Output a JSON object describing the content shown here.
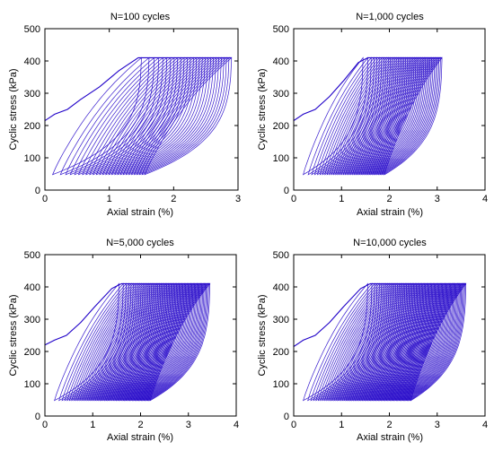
{
  "chart_data": [
    {
      "type": "line",
      "title": "N=100 cycles",
      "xlabel": "Axial strain (%)",
      "ylabel": "Cyclic stress (kPa)",
      "xlim": [
        0,
        3
      ],
      "ylim": [
        0,
        500
      ],
      "xticks": [
        0,
        1,
        2,
        3
      ],
      "yticks": [
        0,
        100,
        200,
        300,
        400,
        500
      ],
      "grid": false,
      "line_color": "#1f00c8",
      "series": [
        {
          "x": [
            0.0,
            0.15,
            0.35,
            0.55,
            0.85,
            1.15,
            1.45,
            1.7,
            1.85,
            2.05,
            2.3,
            2.55,
            2.75,
            2.85,
            2.9
          ],
          "y": [
            215,
            235,
            250,
            280,
            320,
            370,
            410,
            410,
            410,
            410,
            410,
            410,
            410,
            410,
            410
          ]
        }
      ],
      "loop_band": {
        "stress_min": 48,
        "stress_max": 410,
        "first_loop_x": [
          0.12,
          1.5
        ],
        "last_loop_x": [
          1.55,
          2.9
        ]
      }
    },
    {
      "type": "line",
      "title": "N=1,000 cycles",
      "xlabel": "Axial strain (%)",
      "ylabel": "Cyclic stress (kPa)",
      "xlim": [
        0,
        4
      ],
      "ylim": [
        0,
        500
      ],
      "xticks": [
        0,
        1,
        2,
        3,
        4
      ],
      "yticks": [
        0,
        100,
        200,
        300,
        400,
        500
      ],
      "grid": false,
      "line_color": "#1f00c8",
      "series": [
        {
          "x": [
            0.0,
            0.2,
            0.45,
            0.75,
            1.05,
            1.35,
            1.55,
            1.8,
            2.1,
            2.4,
            2.7,
            3.0,
            3.1
          ],
          "y": [
            215,
            235,
            250,
            290,
            340,
            395,
            410,
            410,
            410,
            410,
            410,
            410,
            410
          ]
        }
      ],
      "loop_band": {
        "stress_min": 48,
        "stress_max": 410,
        "first_loop_x": [
          0.2,
          1.45
        ],
        "last_loop_x": [
          1.9,
          3.1
        ]
      }
    },
    {
      "type": "line",
      "title": "N=5,000 cycles",
      "xlabel": "Axial strain (%)",
      "ylabel": "Cyclic stress (kPa)",
      "xlim": [
        0,
        4
      ],
      "ylim": [
        0,
        500
      ],
      "xticks": [
        0,
        1,
        2,
        3,
        4
      ],
      "yticks": [
        0,
        100,
        200,
        300,
        400,
        500
      ],
      "grid": false,
      "line_color": "#1f00c8",
      "series": [
        {
          "x": [
            0.0,
            0.2,
            0.45,
            0.75,
            1.05,
            1.4,
            1.6,
            1.9,
            2.2,
            2.6,
            3.0,
            3.3,
            3.45
          ],
          "y": [
            220,
            235,
            250,
            290,
            340,
            395,
            410,
            410,
            410,
            410,
            410,
            410,
            410
          ]
        }
      ],
      "loop_band": {
        "stress_min": 48,
        "stress_max": 410,
        "first_loop_x": [
          0.2,
          1.55
        ],
        "last_loop_x": [
          2.2,
          3.45
        ]
      }
    },
    {
      "type": "line",
      "title": "N=10,000 cycles",
      "xlabel": "Axial strain (%)",
      "ylabel": "Cyclic stress (kPa)",
      "xlim": [
        0,
        4
      ],
      "ylim": [
        0,
        500
      ],
      "xticks": [
        0,
        1,
        2,
        3,
        4
      ],
      "yticks": [
        0,
        100,
        200,
        300,
        400,
        500
      ],
      "grid": false,
      "line_color": "#1f00c8",
      "series": [
        {
          "x": [
            0.0,
            0.2,
            0.45,
            0.75,
            1.05,
            1.4,
            1.6,
            1.9,
            2.3,
            2.8,
            3.2,
            3.5,
            3.6
          ],
          "y": [
            215,
            235,
            250,
            290,
            340,
            395,
            410,
            410,
            410,
            410,
            410,
            410,
            410
          ]
        }
      ],
      "loop_band": {
        "stress_min": 48,
        "stress_max": 410,
        "first_loop_x": [
          0.2,
          1.55
        ],
        "last_loop_x": [
          2.45,
          3.6
        ]
      }
    }
  ]
}
